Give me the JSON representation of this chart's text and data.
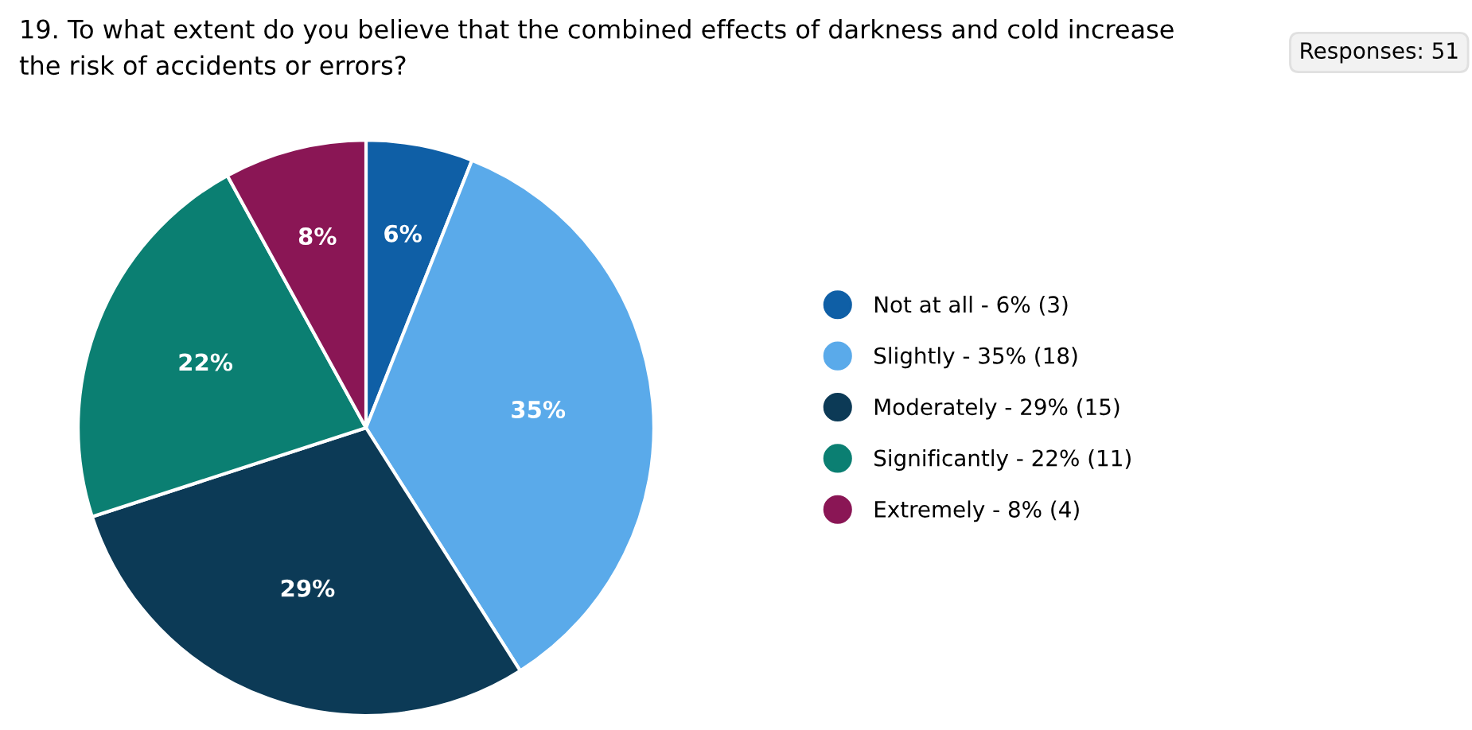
{
  "chart_data": {
    "type": "pie",
    "title": "19. To what extent do you believe that the combined effects of darkness and cold increase\nthe risk of accidents or errors?",
    "annotations": [
      "Responses: 51"
    ],
    "categories": [
      "Not at all - 6% (3)",
      "Slightly - 35% (18)",
      "Moderately - 29% (15)",
      "Significantly - 22% (11)",
      "Extremely - 8% (4)"
    ],
    "values": [
      6,
      35,
      29,
      22,
      8
    ],
    "value_labels": [
      "6%",
      "35%",
      "29%",
      "22%",
      "8%"
    ],
    "colors": [
      "#0f5fa6",
      "#5aaaea",
      "#0c3a56",
      "#0b7f72",
      "#8a1655"
    ],
    "legend": "right"
  }
}
